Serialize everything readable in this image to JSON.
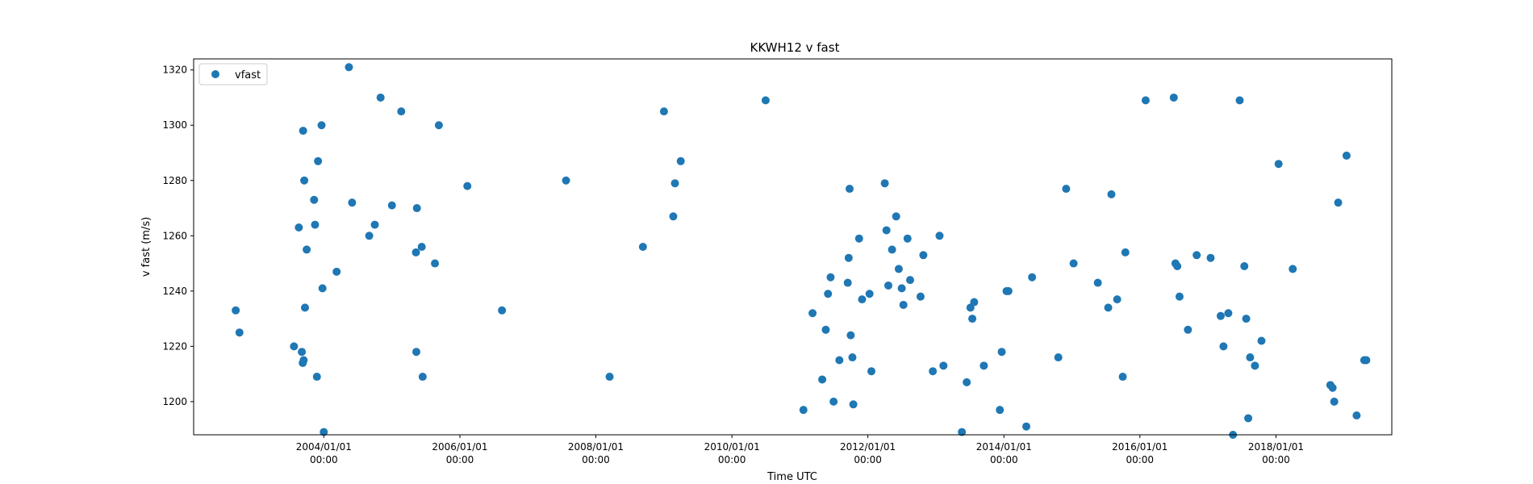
{
  "chart_data": {
    "type": "scatter",
    "title": "KKWH12 v fast",
    "xlabel": "Time UTC",
    "ylabel": "v fast (m/s)",
    "xlim": [
      "2002-02-01",
      "2019-09-15"
    ],
    "ylim": [
      1188,
      1324
    ],
    "x_ticks": [
      {
        "date": "2004-01-01",
        "line1": "2004/01/01",
        "line2": "00:00"
      },
      {
        "date": "2006-01-01",
        "line1": "2006/01/01",
        "line2": "00:00"
      },
      {
        "date": "2008-01-01",
        "line1": "2008/01/01",
        "line2": "00:00"
      },
      {
        "date": "2010-01-01",
        "line1": "2010/01/01",
        "line2": "00:00"
      },
      {
        "date": "2012-01-01",
        "line1": "2012/01/01",
        "line2": "00:00"
      },
      {
        "date": "2014-01-01",
        "line1": "2014/01/01",
        "line2": "00:00"
      },
      {
        "date": "2016-01-01",
        "line1": "2016/01/01",
        "line2": "00:00"
      },
      {
        "date": "2018-01-01",
        "line1": "2018/01/01",
        "line2": "00:00"
      }
    ],
    "y_ticks": [
      1200,
      1220,
      1240,
      1260,
      1280,
      1300,
      1320
    ],
    "grid": false,
    "legend_position": "upper-left",
    "color": "#1f77b4",
    "series": [
      {
        "name": "vfast",
        "points": [
          [
            "2002-09-15",
            1233
          ],
          [
            "2002-10-05",
            1225
          ],
          [
            "2003-07-25",
            1220
          ],
          [
            "2003-08-20",
            1263
          ],
          [
            "2003-09-05",
            1218
          ],
          [
            "2003-09-10",
            1214
          ],
          [
            "2003-09-12",
            1298
          ],
          [
            "2003-09-15",
            1215
          ],
          [
            "2003-09-18",
            1280
          ],
          [
            "2003-09-22",
            1234
          ],
          [
            "2003-10-01",
            1255
          ],
          [
            "2003-11-10",
            1273
          ],
          [
            "2003-11-15",
            1264
          ],
          [
            "2003-11-25",
            1209
          ],
          [
            "2003-12-01",
            1287
          ],
          [
            "2003-12-20",
            1300
          ],
          [
            "2003-12-25",
            1241
          ],
          [
            "2004-01-01",
            1189
          ],
          [
            "2004-03-10",
            1247
          ],
          [
            "2004-05-15",
            1321
          ],
          [
            "2004-06-01",
            1272
          ],
          [
            "2004-09-01",
            1260
          ],
          [
            "2004-10-01",
            1264
          ],
          [
            "2004-11-01",
            1310
          ],
          [
            "2005-01-01",
            1271
          ],
          [
            "2005-02-20",
            1305
          ],
          [
            "2005-05-10",
            1254
          ],
          [
            "2005-05-12",
            1218
          ],
          [
            "2005-05-15",
            1270
          ],
          [
            "2005-06-10",
            1256
          ],
          [
            "2005-06-15",
            1209
          ],
          [
            "2005-08-20",
            1250
          ],
          [
            "2005-09-10",
            1300
          ],
          [
            "2006-02-10",
            1278
          ],
          [
            "2006-08-15",
            1233
          ],
          [
            "2007-07-25",
            1280
          ],
          [
            "2008-03-15",
            1209
          ],
          [
            "2008-09-10",
            1256
          ],
          [
            "2009-01-01",
            1305
          ],
          [
            "2009-02-20",
            1267
          ],
          [
            "2009-03-01",
            1279
          ],
          [
            "2009-04-01",
            1287
          ],
          [
            "2010-07-01",
            1309
          ],
          [
            "2011-01-20",
            1197
          ],
          [
            "2011-03-10",
            1232
          ],
          [
            "2011-05-01",
            1208
          ],
          [
            "2011-05-20",
            1226
          ],
          [
            "2011-06-01",
            1239
          ],
          [
            "2011-06-15",
            1245
          ],
          [
            "2011-07-01",
            1200
          ],
          [
            "2011-08-01",
            1215
          ],
          [
            "2011-09-15",
            1243
          ],
          [
            "2011-09-20",
            1252
          ],
          [
            "2011-09-25",
            1277
          ],
          [
            "2011-10-01",
            1224
          ],
          [
            "2011-10-10",
            1216
          ],
          [
            "2011-10-15",
            1199
          ],
          [
            "2011-11-15",
            1259
          ],
          [
            "2011-12-01",
            1237
          ],
          [
            "2012-01-10",
            1239
          ],
          [
            "2012-01-20",
            1211
          ],
          [
            "2012-04-01",
            1279
          ],
          [
            "2012-04-10",
            1262
          ],
          [
            "2012-04-20",
            1242
          ],
          [
            "2012-05-10",
            1255
          ],
          [
            "2012-06-01",
            1267
          ],
          [
            "2012-06-15",
            1248
          ],
          [
            "2012-07-01",
            1241
          ],
          [
            "2012-07-10",
            1235
          ],
          [
            "2012-08-01",
            1259
          ],
          [
            "2012-08-15",
            1244
          ],
          [
            "2012-10-10",
            1238
          ],
          [
            "2012-10-25",
            1253
          ],
          [
            "2012-12-15",
            1211
          ],
          [
            "2013-01-20",
            1260
          ],
          [
            "2013-02-10",
            1213
          ],
          [
            "2013-05-20",
            1189
          ],
          [
            "2013-06-15",
            1207
          ],
          [
            "2013-07-05",
            1234
          ],
          [
            "2013-07-15",
            1230
          ],
          [
            "2013-07-25",
            1236
          ],
          [
            "2013-09-15",
            1213
          ],
          [
            "2013-12-10",
            1197
          ],
          [
            "2013-12-20",
            1218
          ],
          [
            "2014-01-15",
            1240
          ],
          [
            "2014-01-25",
            1240
          ],
          [
            "2014-05-01",
            1191
          ],
          [
            "2014-06-01",
            1245
          ],
          [
            "2014-10-20",
            1216
          ],
          [
            "2014-12-01",
            1277
          ],
          [
            "2015-01-10",
            1250
          ],
          [
            "2015-05-20",
            1243
          ],
          [
            "2015-07-15",
            1234
          ],
          [
            "2015-08-01",
            1275
          ],
          [
            "2015-09-01",
            1237
          ],
          [
            "2015-10-01",
            1209
          ],
          [
            "2015-10-15",
            1254
          ],
          [
            "2016-02-01",
            1309
          ],
          [
            "2016-07-01",
            1310
          ],
          [
            "2016-07-10",
            1250
          ],
          [
            "2016-07-20",
            1249
          ],
          [
            "2016-08-01",
            1238
          ],
          [
            "2016-09-15",
            1226
          ],
          [
            "2016-11-01",
            1253
          ],
          [
            "2017-01-15",
            1252
          ],
          [
            "2017-03-10",
            1231
          ],
          [
            "2017-03-25",
            1220
          ],
          [
            "2017-04-20",
            1232
          ],
          [
            "2017-05-15",
            1188
          ],
          [
            "2017-06-20",
            1309
          ],
          [
            "2017-07-15",
            1249
          ],
          [
            "2017-07-25",
            1230
          ],
          [
            "2017-08-05",
            1194
          ],
          [
            "2017-08-15",
            1216
          ],
          [
            "2017-09-10",
            1213
          ],
          [
            "2017-10-15",
            1222
          ],
          [
            "2018-01-15",
            1286
          ],
          [
            "2018-04-01",
            1248
          ],
          [
            "2018-10-20",
            1206
          ],
          [
            "2018-11-01",
            1205
          ],
          [
            "2018-11-10",
            1200
          ],
          [
            "2018-12-01",
            1272
          ],
          [
            "2019-01-15",
            1289
          ],
          [
            "2019-03-10",
            1195
          ],
          [
            "2019-04-20",
            1215
          ],
          [
            "2019-05-01",
            1215
          ]
        ]
      }
    ]
  }
}
